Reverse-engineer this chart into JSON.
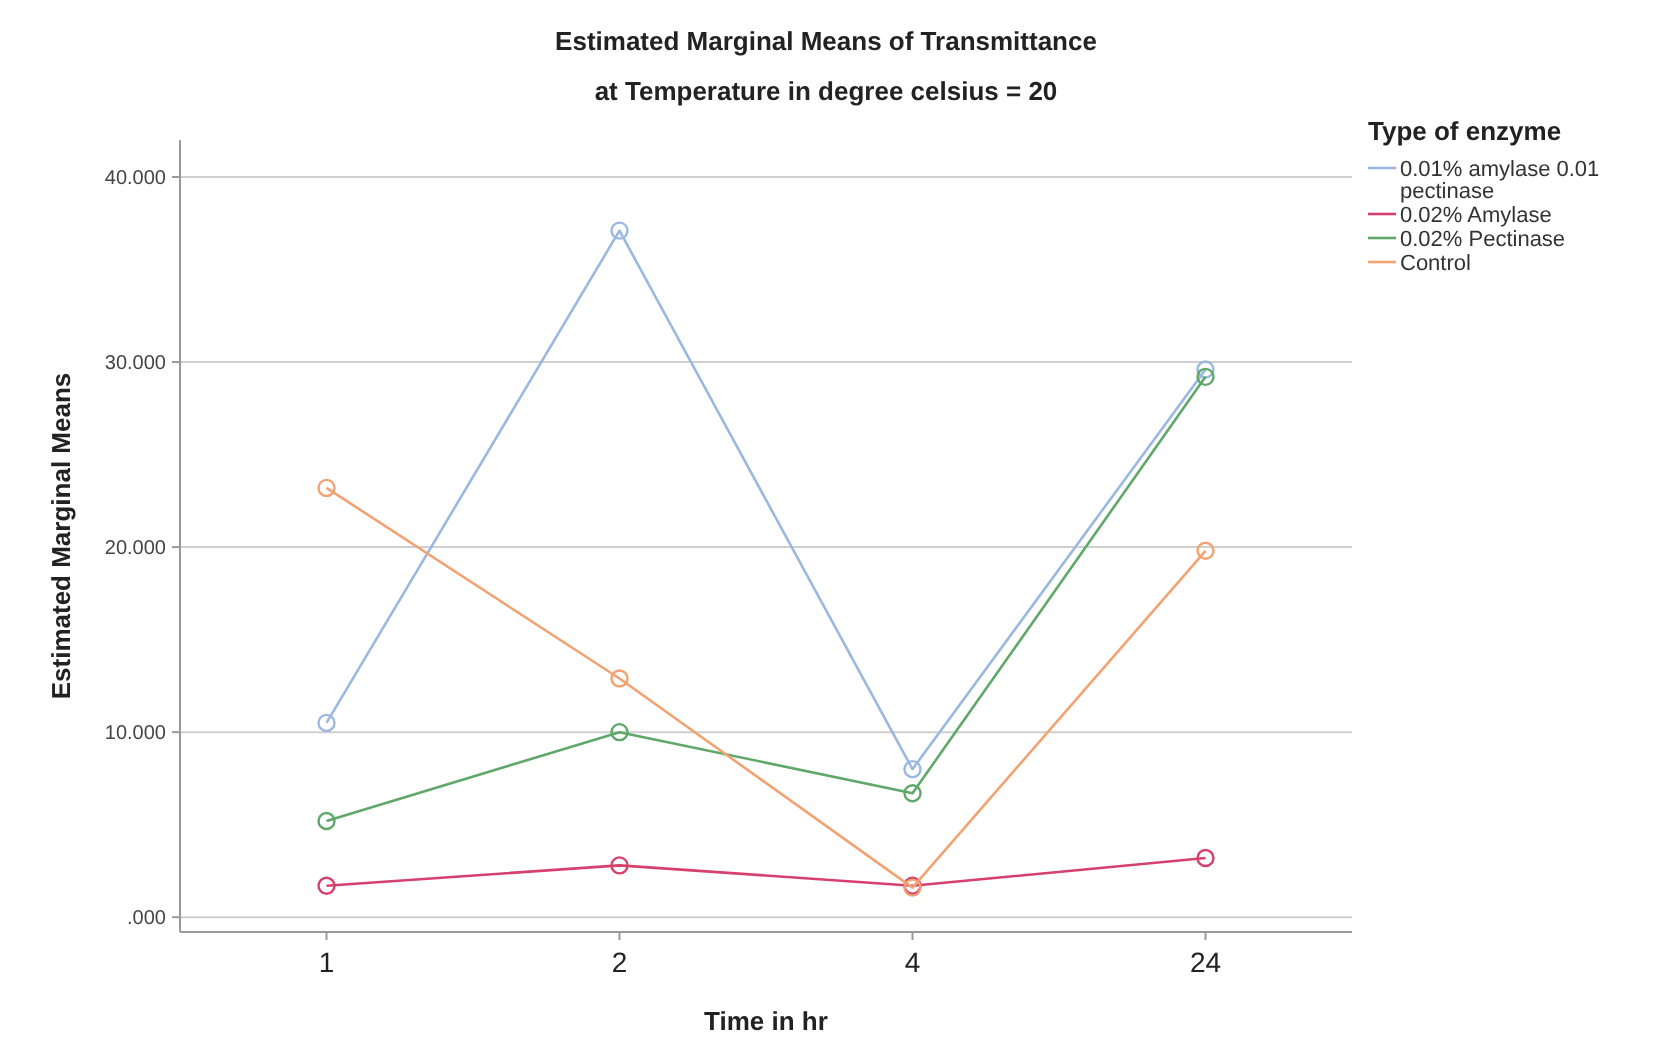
{
  "chart_data": {
    "type": "line",
    "title": "Estimated Marginal Means of Transmittance",
    "subtitle": "at Temperature  in degree celsius = 20",
    "xlabel": "Time in hr",
    "ylabel": "Estimated Marginal Means",
    "legend_title": "Type of enzyme",
    "categories": [
      "1",
      "2",
      "4",
      "24"
    ],
    "series": [
      {
        "name": "0.01% amylase 0.01 pectinase",
        "color": "#9bb8e0",
        "values": [
          10.5,
          37.1,
          8.0,
          29.6
        ]
      },
      {
        "name": "0.02% Amylase",
        "color": "#d6406c",
        "values": [
          1.7,
          2.8,
          1.7,
          3.2
        ]
      },
      {
        "name": "0.02% Pectinase",
        "color": "#5fa86a",
        "values": [
          5.2,
          10.0,
          6.7,
          29.2
        ]
      },
      {
        "name": "Control",
        "color": "#f2a273",
        "values": [
          23.2,
          12.9,
          1.6,
          19.8
        ]
      }
    ],
    "ylim": [
      -0.8,
      42
    ],
    "yticks": [
      {
        "value": 0,
        "label": ".000"
      },
      {
        "value": 10,
        "label": "10.000"
      },
      {
        "value": 20,
        "label": "20.000"
      },
      {
        "value": 30,
        "label": "30.000"
      },
      {
        "value": 40,
        "label": "40.000"
      }
    ],
    "grid": "y",
    "legend": "right",
    "marker": "circle",
    "line_style": "solid"
  }
}
